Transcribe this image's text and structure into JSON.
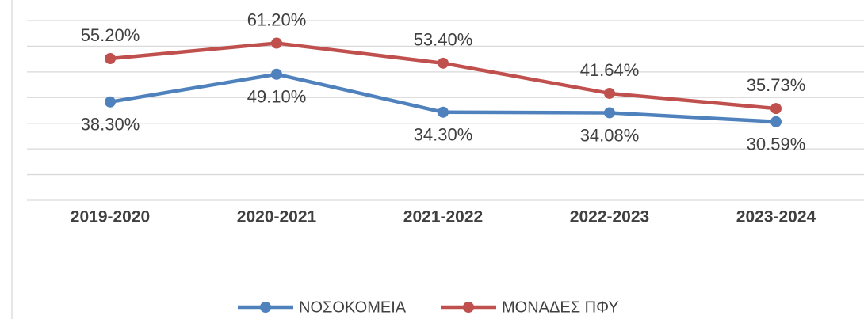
{
  "chart_data": {
    "type": "line",
    "categories": [
      "2019-2020",
      "2020-2021",
      "2021-2022",
      "2022-2023",
      "2023-2024"
    ],
    "series": [
      {
        "name": "ΝΟΣΟΚΟΜΕΙΑ",
        "color": "#4f81bd",
        "values": [
          38.3,
          49.1,
          34.3,
          34.08,
          30.59
        ],
        "value_labels": [
          "38.30%",
          "49.10%",
          "34.30%",
          "34.08%",
          "30.59%"
        ]
      },
      {
        "name": "ΜΟΝΑΔΕΣ ΠΦΥ",
        "color": "#c0504d",
        "values": [
          55.2,
          61.2,
          53.4,
          41.64,
          35.73
        ],
        "value_labels": [
          "55.20%",
          "61.20%",
          "53.40%",
          "41.64%",
          "35.73%"
        ]
      }
    ],
    "ylim": [
      0,
      70
    ],
    "yticks": [
      0,
      10,
      20,
      30,
      40,
      50,
      60,
      70
    ],
    "grid": true,
    "legend": "bottom"
  }
}
